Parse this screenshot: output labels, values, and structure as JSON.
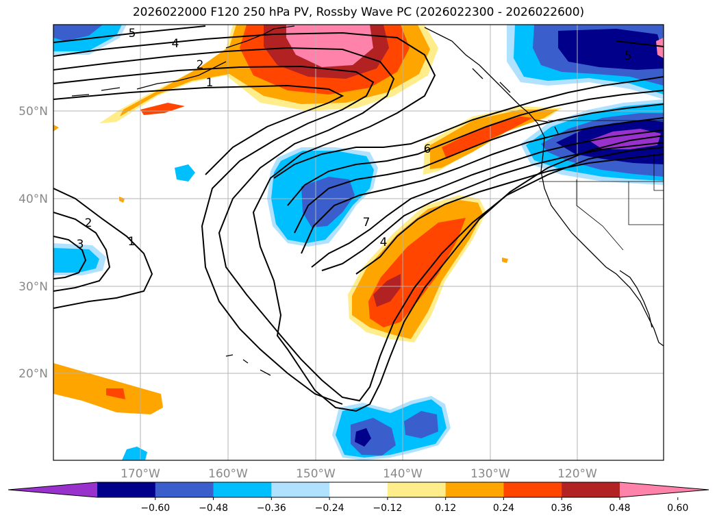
{
  "title": "2026022000 F120 250 hPa PV, Rossby Wave PC (2026022300 - 2026022600)",
  "map": {
    "lat_labels": [
      "50°N",
      "40°N",
      "30°N",
      "20°N"
    ],
    "lon_labels": [
      "170°W",
      "160°W",
      "150°W",
      "140°W",
      "130°W",
      "120°W"
    ],
    "contour_labels": [
      "5",
      "4",
      "2",
      "1",
      "6",
      "7",
      "4",
      "2",
      "3",
      "1",
      "5"
    ]
  },
  "colorbar": {
    "colors": [
      "#9932cc",
      "#00008b",
      "#3a5fcd",
      "#00bfff",
      "#b0e2ff",
      "#ffffff",
      "#ffec8b",
      "#ffa500",
      "#ff4500",
      "#b22222",
      "#ff82ab"
    ],
    "tick_labels": [
      "−0.60",
      "−0.48",
      "−0.36",
      "−0.24",
      "−0.12",
      "0.12",
      "0.24",
      "0.36",
      "0.48",
      "0.60"
    ]
  }
}
